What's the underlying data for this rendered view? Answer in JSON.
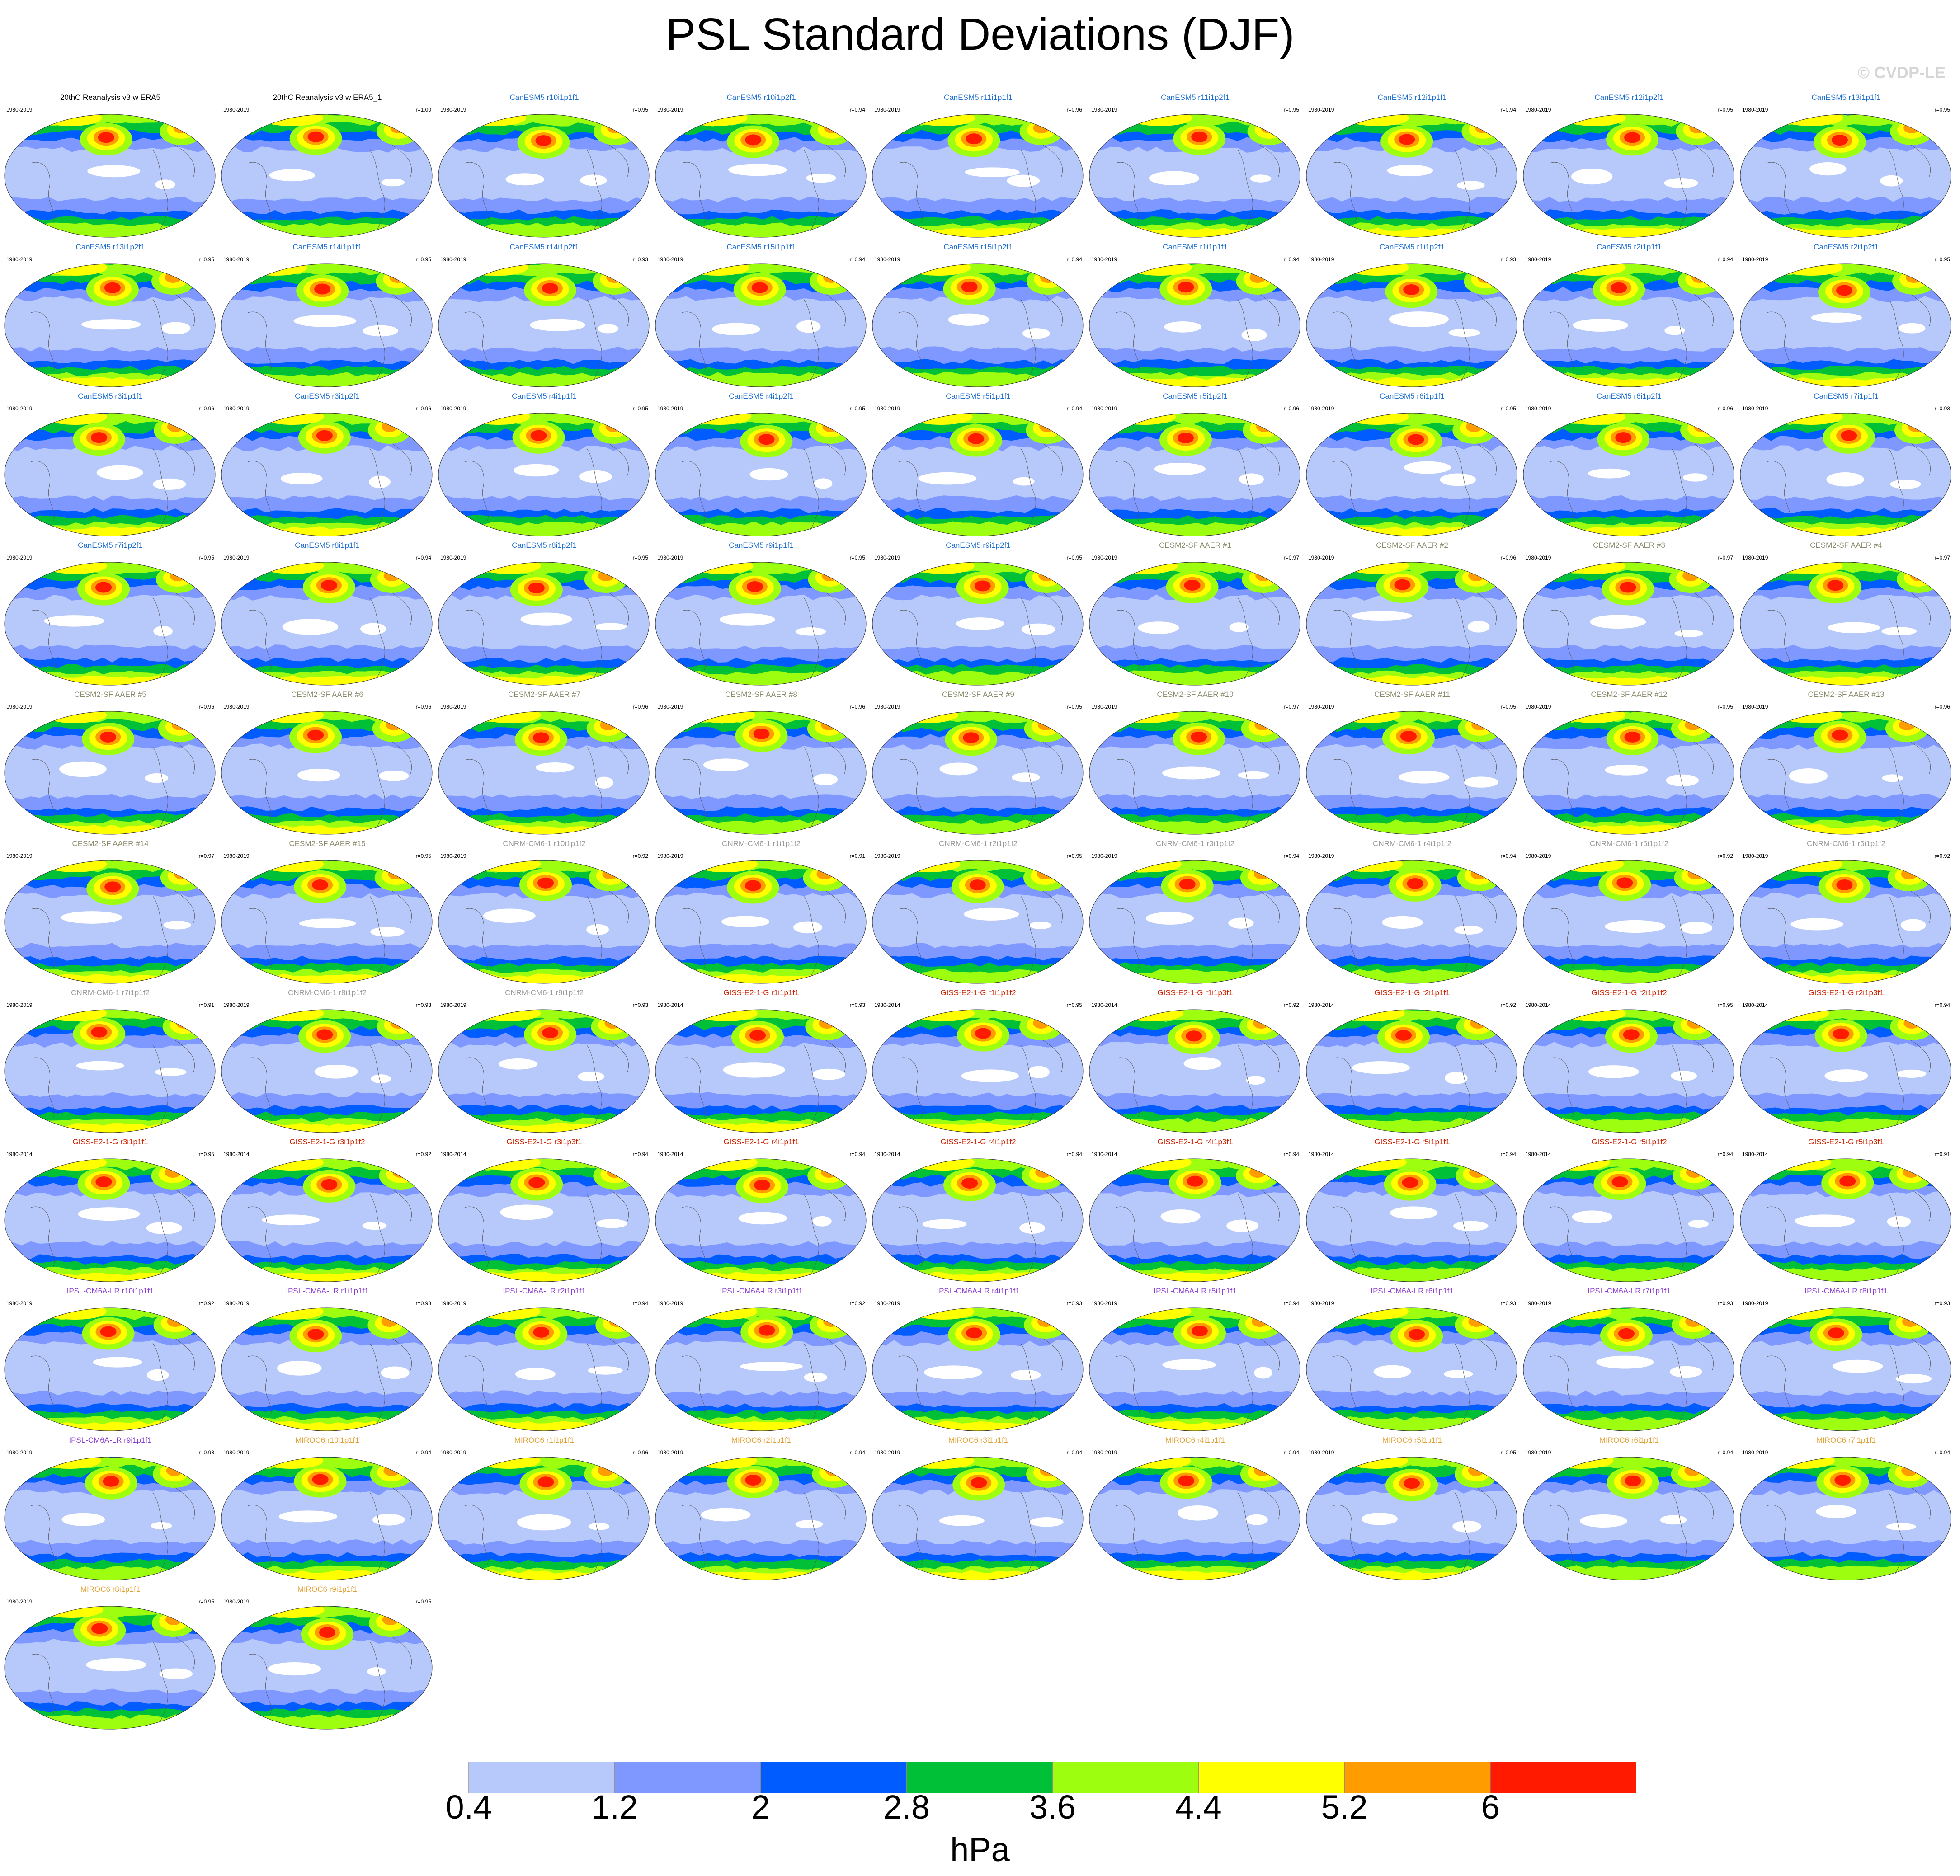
{
  "title": "PSL Standard Deviations (DJF)",
  "copyright": "© CVDP-LE",
  "chart_data": {
    "type": "heatmap",
    "variable": "PSL standard deviation",
    "season": "DJF",
    "units": "hPa",
    "colorbar": {
      "ticks": [
        "0.4",
        "1.2",
        "2",
        "2.8",
        "3.6",
        "4.4",
        "5.2",
        "6"
      ],
      "tick_values": [
        0.4,
        1.2,
        2,
        2.8,
        3.6,
        4.4,
        5.2,
        6
      ],
      "colors": [
        "#ffffff",
        "#b7c8fb",
        "#7f98ff",
        "#005cff",
        "#00c038",
        "#9efe10",
        "#ffff00",
        "#ff9d00",
        "#ff1a00"
      ],
      "units": "hPa"
    },
    "panels": [
      {
        "name": "20thC Reanalysis v3 w ERA5",
        "years": "1980-2019",
        "r": "",
        "color": "#000000"
      },
      {
        "name": "20thC Reanalysis v3 w ERA5_1",
        "years": "1980-2019",
        "r": "r=1.00",
        "color": "#000000"
      },
      {
        "name": "CanESM5 r10i1p1f1",
        "years": "1980-2019",
        "r": "r=0.95",
        "color": "#1f6fd1"
      },
      {
        "name": "CanESM5 r10i1p2f1",
        "years": "1980-2019",
        "r": "r=0.94",
        "color": "#1f6fd1"
      },
      {
        "name": "CanESM5 r11i1p1f1",
        "years": "1980-2019",
        "r": "r=0.96",
        "color": "#1f6fd1"
      },
      {
        "name": "CanESM5 r11i1p2f1",
        "years": "1980-2019",
        "r": "r=0.95",
        "color": "#1f6fd1"
      },
      {
        "name": "CanESM5 r12i1p1f1",
        "years": "1980-2019",
        "r": "r=0.94",
        "color": "#1f6fd1"
      },
      {
        "name": "CanESM5 r12i1p2f1",
        "years": "1980-2019",
        "r": "r=0.95",
        "color": "#1f6fd1"
      },
      {
        "name": "CanESM5 r13i1p1f1",
        "years": "1980-2019",
        "r": "r=0.95",
        "color": "#1f6fd1"
      },
      {
        "name": "CanESM5 r13i1p2f1",
        "years": "1980-2019",
        "r": "r=0.95",
        "color": "#1f6fd1"
      },
      {
        "name": "CanESM5 r14i1p1f1",
        "years": "1980-2019",
        "r": "r=0.95",
        "color": "#1f6fd1"
      },
      {
        "name": "CanESM5 r14i1p2f1",
        "years": "1980-2019",
        "r": "r=0.93",
        "color": "#1f6fd1"
      },
      {
        "name": "CanESM5 r15i1p1f1",
        "years": "1980-2019",
        "r": "r=0.94",
        "color": "#1f6fd1"
      },
      {
        "name": "CanESM5 r15i1p2f1",
        "years": "1980-2019",
        "r": "r=0.94",
        "color": "#1f6fd1"
      },
      {
        "name": "CanESM5 r1i1p1f1",
        "years": "1980-2019",
        "r": "r=0.94",
        "color": "#1f6fd1"
      },
      {
        "name": "CanESM5 r1i1p2f1",
        "years": "1980-2019",
        "r": "r=0.93",
        "color": "#1f6fd1"
      },
      {
        "name": "CanESM5 r2i1p1f1",
        "years": "1980-2019",
        "r": "r=0.94",
        "color": "#1f6fd1"
      },
      {
        "name": "CanESM5 r2i1p2f1",
        "years": "1980-2019",
        "r": "r=0.95",
        "color": "#1f6fd1"
      },
      {
        "name": "CanESM5 r3i1p1f1",
        "years": "1980-2019",
        "r": "r=0.96",
        "color": "#1f6fd1"
      },
      {
        "name": "CanESM5 r3i1p2f1",
        "years": "1980-2019",
        "r": "r=0.96",
        "color": "#1f6fd1"
      },
      {
        "name": "CanESM5 r4i1p1f1",
        "years": "1980-2019",
        "r": "r=0.95",
        "color": "#1f6fd1"
      },
      {
        "name": "CanESM5 r4i1p2f1",
        "years": "1980-2019",
        "r": "r=0.95",
        "color": "#1f6fd1"
      },
      {
        "name": "CanESM5 r5i1p1f1",
        "years": "1980-2019",
        "r": "r=0.94",
        "color": "#1f6fd1"
      },
      {
        "name": "CanESM5 r5i1p2f1",
        "years": "1980-2019",
        "r": "r=0.96",
        "color": "#1f6fd1"
      },
      {
        "name": "CanESM5 r6i1p1f1",
        "years": "1980-2019",
        "r": "r=0.95",
        "color": "#1f6fd1"
      },
      {
        "name": "CanESM5 r6i1p2f1",
        "years": "1980-2019",
        "r": "r=0.96",
        "color": "#1f6fd1"
      },
      {
        "name": "CanESM5 r7i1p1f1",
        "years": "1980-2019",
        "r": "r=0.93",
        "color": "#1f6fd1"
      },
      {
        "name": "CanESM5 r7i1p2f1",
        "years": "1980-2019",
        "r": "r=0.95",
        "color": "#1f6fd1"
      },
      {
        "name": "CanESM5 r8i1p1f1",
        "years": "1980-2019",
        "r": "r=0.94",
        "color": "#1f6fd1"
      },
      {
        "name": "CanESM5 r8i1p2f1",
        "years": "1980-2019",
        "r": "r=0.95",
        "color": "#1f6fd1"
      },
      {
        "name": "CanESM5 r9i1p1f1",
        "years": "1980-2019",
        "r": "r=0.95",
        "color": "#1f6fd1"
      },
      {
        "name": "CanESM5 r9i1p2f1",
        "years": "1980-2019",
        "r": "r=0.95",
        "color": "#1f6fd1"
      },
      {
        "name": "CESM2-SF AAER #1",
        "years": "1980-2019",
        "r": "r=0.97",
        "color": "#8a8a6a"
      },
      {
        "name": "CESM2-SF AAER #2",
        "years": "1980-2019",
        "r": "r=0.96",
        "color": "#8a8a6a"
      },
      {
        "name": "CESM2-SF AAER #3",
        "years": "1980-2019",
        "r": "r=0.97",
        "color": "#8a8a6a"
      },
      {
        "name": "CESM2-SF AAER #4",
        "years": "1980-2019",
        "r": "r=0.97",
        "color": "#8a8a6a"
      },
      {
        "name": "CESM2-SF AAER #5",
        "years": "1980-2019",
        "r": "r=0.96",
        "color": "#8a8a6a"
      },
      {
        "name": "CESM2-SF AAER #6",
        "years": "1980-2019",
        "r": "r=0.96",
        "color": "#8a8a6a"
      },
      {
        "name": "CESM2-SF AAER #7",
        "years": "1980-2019",
        "r": "r=0.96",
        "color": "#8a8a6a"
      },
      {
        "name": "CESM2-SF AAER #8",
        "years": "1980-2019",
        "r": "r=0.96",
        "color": "#8a8a6a"
      },
      {
        "name": "CESM2-SF AAER #9",
        "years": "1980-2019",
        "r": "r=0.95",
        "color": "#8a8a6a"
      },
      {
        "name": "CESM2-SF AAER #10",
        "years": "1980-2019",
        "r": "r=0.97",
        "color": "#8a8a6a"
      },
      {
        "name": "CESM2-SF AAER #11",
        "years": "1980-2019",
        "r": "r=0.95",
        "color": "#8a8a6a"
      },
      {
        "name": "CESM2-SF AAER #12",
        "years": "1980-2019",
        "r": "r=0.95",
        "color": "#8a8a6a"
      },
      {
        "name": "CESM2-SF AAER #13",
        "years": "1980-2019",
        "r": "r=0.96",
        "color": "#8a8a6a"
      },
      {
        "name": "CESM2-SF AAER #14",
        "years": "1980-2019",
        "r": "r=0.97",
        "color": "#8a8a6a"
      },
      {
        "name": "CESM2-SF AAER #15",
        "years": "1980-2019",
        "r": "r=0.95",
        "color": "#8a8a6a"
      },
      {
        "name": "CNRM-CM6-1 r10i1p1f2",
        "years": "1980-2019",
        "r": "r=0.92",
        "color": "#9a9a9a"
      },
      {
        "name": "CNRM-CM6-1 r1i1p1f2",
        "years": "1980-2019",
        "r": "r=0.91",
        "color": "#9a9a9a"
      },
      {
        "name": "CNRM-CM6-1 r2i1p1f2",
        "years": "1980-2019",
        "r": "r=0.95",
        "color": "#9a9a9a"
      },
      {
        "name": "CNRM-CM6-1 r3i1p1f2",
        "years": "1980-2019",
        "r": "r=0.94",
        "color": "#9a9a9a"
      },
      {
        "name": "CNRM-CM6-1 r4i1p1f2",
        "years": "1980-2019",
        "r": "r=0.94",
        "color": "#9a9a9a"
      },
      {
        "name": "CNRM-CM6-1 r5i1p1f2",
        "years": "1980-2019",
        "r": "r=0.92",
        "color": "#9a9a9a"
      },
      {
        "name": "CNRM-CM6-1 r6i1p1f2",
        "years": "1980-2019",
        "r": "r=0.92",
        "color": "#9a9a9a"
      },
      {
        "name": "CNRM-CM6-1 r7i1p1f2",
        "years": "1980-2019",
        "r": "r=0.91",
        "color": "#9a9a9a"
      },
      {
        "name": "CNRM-CM6-1 r8i1p1f2",
        "years": "1980-2019",
        "r": "r=0.93",
        "color": "#9a9a9a"
      },
      {
        "name": "CNRM-CM6-1 r9i1p1f2",
        "years": "1980-2019",
        "r": "r=0.93",
        "color": "#9a9a9a"
      },
      {
        "name": "GISS-E2-1-G r1i1p1f1",
        "years": "1980-2014",
        "r": "r=0.93",
        "color": "#cc2200"
      },
      {
        "name": "GISS-E2-1-G r1i1p1f2",
        "years": "1980-2014",
        "r": "r=0.95",
        "color": "#cc2200"
      },
      {
        "name": "GISS-E2-1-G r1i1p3f1",
        "years": "1980-2014",
        "r": "r=0.92",
        "color": "#cc2200"
      },
      {
        "name": "GISS-E2-1-G r2i1p1f1",
        "years": "1980-2014",
        "r": "r=0.92",
        "color": "#cc2200"
      },
      {
        "name": "GISS-E2-1-G r2i1p1f2",
        "years": "1980-2014",
        "r": "r=0.95",
        "color": "#cc2200"
      },
      {
        "name": "GISS-E2-1-G r2i1p3f1",
        "years": "1980-2014",
        "r": "r=0.94",
        "color": "#cc2200"
      },
      {
        "name": "GISS-E2-1-G r3i1p1f1",
        "years": "1980-2014",
        "r": "r=0.95",
        "color": "#cc2200"
      },
      {
        "name": "GISS-E2-1-G r3i1p1f2",
        "years": "1980-2014",
        "r": "r=0.92",
        "color": "#cc2200"
      },
      {
        "name": "GISS-E2-1-G r3i1p3f1",
        "years": "1980-2014",
        "r": "r=0.94",
        "color": "#cc2200"
      },
      {
        "name": "GISS-E2-1-G r4i1p1f1",
        "years": "1980-2014",
        "r": "r=0.94",
        "color": "#cc2200"
      },
      {
        "name": "GISS-E2-1-G r4i1p1f2",
        "years": "1980-2014",
        "r": "r=0.94",
        "color": "#cc2200"
      },
      {
        "name": "GISS-E2-1-G r4i1p3f1",
        "years": "1980-2014",
        "r": "r=0.94",
        "color": "#cc2200"
      },
      {
        "name": "GISS-E2-1-G r5i1p1f1",
        "years": "1980-2014",
        "r": "r=0.94",
        "color": "#cc2200"
      },
      {
        "name": "GISS-E2-1-G r5i1p1f2",
        "years": "1980-2014",
        "r": "r=0.94",
        "color": "#cc2200"
      },
      {
        "name": "GISS-E2-1-G r5i1p3f1",
        "years": "1980-2014",
        "r": "r=0.91",
        "color": "#cc2200"
      },
      {
        "name": "IPSL-CM6A-LR r10i1p1f1",
        "years": "1980-2019",
        "r": "r=0.92",
        "color": "#8a3fd1"
      },
      {
        "name": "IPSL-CM6A-LR r1i1p1f1",
        "years": "1980-2019",
        "r": "r=0.93",
        "color": "#8a3fd1"
      },
      {
        "name": "IPSL-CM6A-LR r2i1p1f1",
        "years": "1980-2019",
        "r": "r=0.94",
        "color": "#8a3fd1"
      },
      {
        "name": "IPSL-CM6A-LR r3i1p1f1",
        "years": "1980-2019",
        "r": "r=0.92",
        "color": "#8a3fd1"
      },
      {
        "name": "IPSL-CM6A-LR r4i1p1f1",
        "years": "1980-2019",
        "r": "r=0.93",
        "color": "#8a3fd1"
      },
      {
        "name": "IPSL-CM6A-LR r5i1p1f1",
        "years": "1980-2019",
        "r": "r=0.94",
        "color": "#8a3fd1"
      },
      {
        "name": "IPSL-CM6A-LR r6i1p1f1",
        "years": "1980-2019",
        "r": "r=0.93",
        "color": "#8a3fd1"
      },
      {
        "name": "IPSL-CM6A-LR r7i1p1f1",
        "years": "1980-2019",
        "r": "r=0.93",
        "color": "#8a3fd1"
      },
      {
        "name": "IPSL-CM6A-LR r8i1p1f1",
        "years": "1980-2019",
        "r": "r=0.93",
        "color": "#8a3fd1"
      },
      {
        "name": "IPSL-CM6A-LR r9i1p1f1",
        "years": "1980-2019",
        "r": "r=0.93",
        "color": "#8a3fd1"
      },
      {
        "name": "MIROC6 r10i1p1f1",
        "years": "1980-2019",
        "r": "r=0.94",
        "color": "#e0a030"
      },
      {
        "name": "MIROC6 r1i1p1f1",
        "years": "1980-2019",
        "r": "r=0.96",
        "color": "#e0a030"
      },
      {
        "name": "MIROC6 r2i1p1f1",
        "years": "1980-2019",
        "r": "r=0.94",
        "color": "#e0a030"
      },
      {
        "name": "MIROC6 r3i1p1f1",
        "years": "1980-2019",
        "r": "r=0.94",
        "color": "#e0a030"
      },
      {
        "name": "MIROC6 r4i1p1f1",
        "years": "1980-2019",
        "r": "r=0.94",
        "color": "#e0a030"
      },
      {
        "name": "MIROC6 r5i1p1f1",
        "years": "1980-2019",
        "r": "r=0.95",
        "color": "#e0a030"
      },
      {
        "name": "MIROC6 r6i1p1f1",
        "years": "1980-2019",
        "r": "r=0.94",
        "color": "#e0a030"
      },
      {
        "name": "MIROC6 r7i1p1f1",
        "years": "1980-2019",
        "r": "r=0.94",
        "color": "#e0a030"
      },
      {
        "name": "MIROC6 r8i1p1f1",
        "years": "1980-2019",
        "r": "r=0.95",
        "color": "#e0a030"
      },
      {
        "name": "MIROC6 r9i1p1f1",
        "years": "1980-2019",
        "r": "r=0.95",
        "color": "#e0a030"
      }
    ]
  }
}
